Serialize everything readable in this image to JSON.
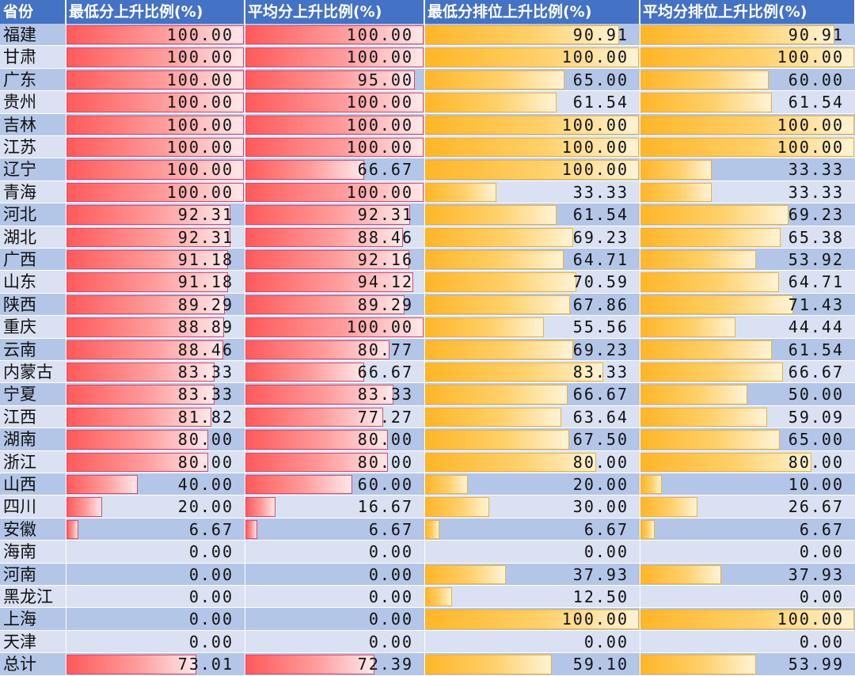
{
  "headers": [
    "省份",
    "最低分上升比例(%)",
    "平均分上升比例(%)",
    "最低分排位上升比例(%)",
    "平均分排位上升比例(%)"
  ],
  "colors": {
    "header_bg": "#4472c4",
    "row_odd": "#b4c6e7",
    "row_even": "#d9e1f2",
    "bar_red": "#ff5a5a",
    "bar_yellow": "#ffb628"
  },
  "rows": [
    {
      "province": "福建",
      "min_score": "100.00",
      "avg_score": "100.00",
      "min_rank": "90.91",
      "avg_rank": "90.91"
    },
    {
      "province": "甘肃",
      "min_score": "100.00",
      "avg_score": "100.00",
      "min_rank": "100.00",
      "avg_rank": "100.00"
    },
    {
      "province": "广东",
      "min_score": "100.00",
      "avg_score": "95.00",
      "min_rank": "65.00",
      "avg_rank": "60.00"
    },
    {
      "province": "贵州",
      "min_score": "100.00",
      "avg_score": "100.00",
      "min_rank": "61.54",
      "avg_rank": "61.54"
    },
    {
      "province": "吉林",
      "min_score": "100.00",
      "avg_score": "100.00",
      "min_rank": "100.00",
      "avg_rank": "100.00"
    },
    {
      "province": "江苏",
      "min_score": "100.00",
      "avg_score": "100.00",
      "min_rank": "100.00",
      "avg_rank": "100.00"
    },
    {
      "province": "辽宁",
      "min_score": "100.00",
      "avg_score": "66.67",
      "min_rank": "100.00",
      "avg_rank": "33.33"
    },
    {
      "province": "青海",
      "min_score": "100.00",
      "avg_score": "100.00",
      "min_rank": "33.33",
      "avg_rank": "33.33"
    },
    {
      "province": "河北",
      "min_score": "92.31",
      "avg_score": "92.31",
      "min_rank": "61.54",
      "avg_rank": "69.23"
    },
    {
      "province": "湖北",
      "min_score": "92.31",
      "avg_score": "88.46",
      "min_rank": "69.23",
      "avg_rank": "65.38"
    },
    {
      "province": "广西",
      "min_score": "91.18",
      "avg_score": "92.16",
      "min_rank": "64.71",
      "avg_rank": "53.92"
    },
    {
      "province": "山东",
      "min_score": "91.18",
      "avg_score": "94.12",
      "min_rank": "70.59",
      "avg_rank": "64.71"
    },
    {
      "province": "陕西",
      "min_score": "89.29",
      "avg_score": "89.29",
      "min_rank": "67.86",
      "avg_rank": "71.43"
    },
    {
      "province": "重庆",
      "min_score": "88.89",
      "avg_score": "100.00",
      "min_rank": "55.56",
      "avg_rank": "44.44"
    },
    {
      "province": "云南",
      "min_score": "88.46",
      "avg_score": "80.77",
      "min_rank": "69.23",
      "avg_rank": "61.54"
    },
    {
      "province": "内蒙古",
      "min_score": "83.33",
      "avg_score": "66.67",
      "min_rank": "83.33",
      "avg_rank": "66.67"
    },
    {
      "province": "宁夏",
      "min_score": "83.33",
      "avg_score": "83.33",
      "min_rank": "66.67",
      "avg_rank": "50.00"
    },
    {
      "province": "江西",
      "min_score": "81.82",
      "avg_score": "77.27",
      "min_rank": "63.64",
      "avg_rank": "59.09"
    },
    {
      "province": "湖南",
      "min_score": "80.00",
      "avg_score": "80.00",
      "min_rank": "67.50",
      "avg_rank": "65.00"
    },
    {
      "province": "浙江",
      "min_score": "80.00",
      "avg_score": "80.00",
      "min_rank": "80.00",
      "avg_rank": "80.00"
    },
    {
      "province": "山西",
      "min_score": "40.00",
      "avg_score": "60.00",
      "min_rank": "20.00",
      "avg_rank": "10.00"
    },
    {
      "province": "四川",
      "min_score": "20.00",
      "avg_score": "16.67",
      "min_rank": "30.00",
      "avg_rank": "26.67"
    },
    {
      "province": "安徽",
      "min_score": "6.67",
      "avg_score": "6.67",
      "min_rank": "6.67",
      "avg_rank": "6.67"
    },
    {
      "province": "海南",
      "min_score": "0.00",
      "avg_score": "0.00",
      "min_rank": "0.00",
      "avg_rank": "0.00"
    },
    {
      "province": "河南",
      "min_score": "0.00",
      "avg_score": "0.00",
      "min_rank": "37.93",
      "avg_rank": "37.93"
    },
    {
      "province": "黑龙江",
      "min_score": "0.00",
      "avg_score": "0.00",
      "min_rank": "12.50",
      "avg_rank": "0.00"
    },
    {
      "province": "上海",
      "min_score": "0.00",
      "avg_score": "0.00",
      "min_rank": "100.00",
      "avg_rank": "100.00"
    },
    {
      "province": "天津",
      "min_score": "0.00",
      "avg_score": "0.00",
      "min_rank": "0.00",
      "avg_rank": "0.00"
    },
    {
      "province": "总计",
      "min_score": "73.01",
      "avg_score": "72.39",
      "min_rank": "59.10",
      "avg_rank": "53.99"
    }
  ]
}
